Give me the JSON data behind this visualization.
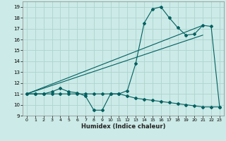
{
  "xlabel": "Humidex (Indice chaleur)",
  "bg_color": "#cceae7",
  "grid_color": "#add4d0",
  "line_color": "#006060",
  "xlim": [
    -0.5,
    23.5
  ],
  "ylim": [
    9,
    19.5
  ],
  "xticks": [
    0,
    1,
    2,
    3,
    4,
    5,
    6,
    7,
    8,
    9,
    10,
    11,
    12,
    13,
    14,
    15,
    16,
    17,
    18,
    19,
    20,
    21,
    22,
    23
  ],
  "yticks": [
    9,
    10,
    11,
    12,
    13,
    14,
    15,
    16,
    17,
    18,
    19
  ],
  "line1_x": [
    0,
    1,
    2,
    3,
    4,
    5,
    6,
    7,
    8,
    9,
    10,
    11,
    12,
    13,
    14,
    15,
    16,
    17,
    18,
    19,
    20,
    21,
    22,
    23
  ],
  "line1_y": [
    11,
    11,
    11,
    11.2,
    11.5,
    11.2,
    11.1,
    10.8,
    9.5,
    9.5,
    11,
    11,
    11.3,
    13.8,
    17.5,
    18.8,
    19,
    18,
    17.1,
    16.4,
    16.5,
    17.3,
    17.2,
    9.8
  ],
  "line2_x": [
    0,
    1,
    2,
    3,
    4,
    5,
    6,
    7,
    8,
    9,
    10,
    11,
    12,
    13,
    14,
    15,
    16,
    17,
    18,
    19,
    20,
    21,
    22,
    23
  ],
  "line2_y": [
    11,
    11,
    11,
    11,
    11,
    11,
    11,
    11,
    11,
    11,
    11,
    11,
    10.8,
    10.6,
    10.5,
    10.4,
    10.3,
    10.2,
    10.1,
    10.0,
    9.9,
    9.8,
    9.8,
    9.8
  ],
  "line3_x": [
    0,
    21
  ],
  "line3_y": [
    11,
    17.3
  ],
  "line4_x": [
    0,
    21
  ],
  "line4_y": [
    11,
    16.4
  ]
}
